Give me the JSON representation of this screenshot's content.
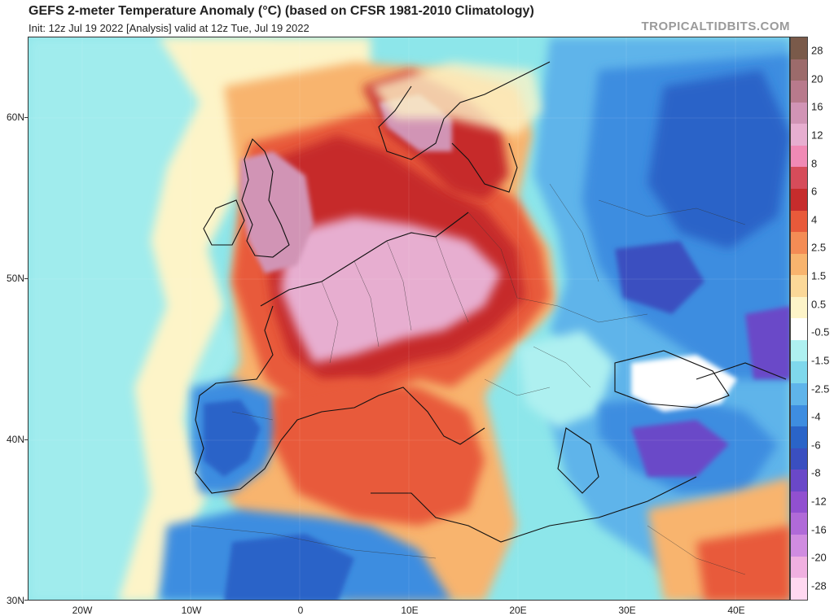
{
  "header": {
    "title": "GEFS 2-meter Temperature Anomaly (°C) (based on CFSR 1981-2010 Climatology)",
    "subtitle": "Init: 12z Jul 19 2022   [Analysis]   valid at 12z Tue, Jul 19 2022",
    "brand": "TROPICALTIDBITS.COM"
  },
  "axes": {
    "lat_labels": [
      "60N",
      "50N",
      "40N",
      "30N"
    ],
    "lon_labels": [
      "20W",
      "10W",
      "0",
      "10E",
      "20E",
      "30E",
      "40E"
    ]
  },
  "colorbar": {
    "labels": [
      "28",
      "20",
      "16",
      "12",
      "8",
      "6",
      "4",
      "2.5",
      "1.5",
      "0.5",
      "-0.5",
      "-1.5",
      "-2.5",
      "-4",
      "-6",
      "-8",
      "-12",
      "-16",
      "-20",
      "-28"
    ],
    "colors": [
      "#7a5a4a",
      "#9c6b6b",
      "#b87a8c",
      "#d194b5",
      "#e7aed0",
      "#f08ab5",
      "#d64c5a",
      "#c62c2c",
      "#e85a3a",
      "#f48c55",
      "#f8b46e",
      "#fbd898",
      "#fdf4c8",
      "#ffffff",
      "#aef0f0",
      "#7fd8ec",
      "#5fb4ea",
      "#3e8de0",
      "#2a64c8",
      "#3a4fc0",
      "#6a48c8",
      "#9150d0",
      "#b06ad8",
      "#d08ce0",
      "#f0b0e0",
      "#ffd8f0"
    ]
  }
}
